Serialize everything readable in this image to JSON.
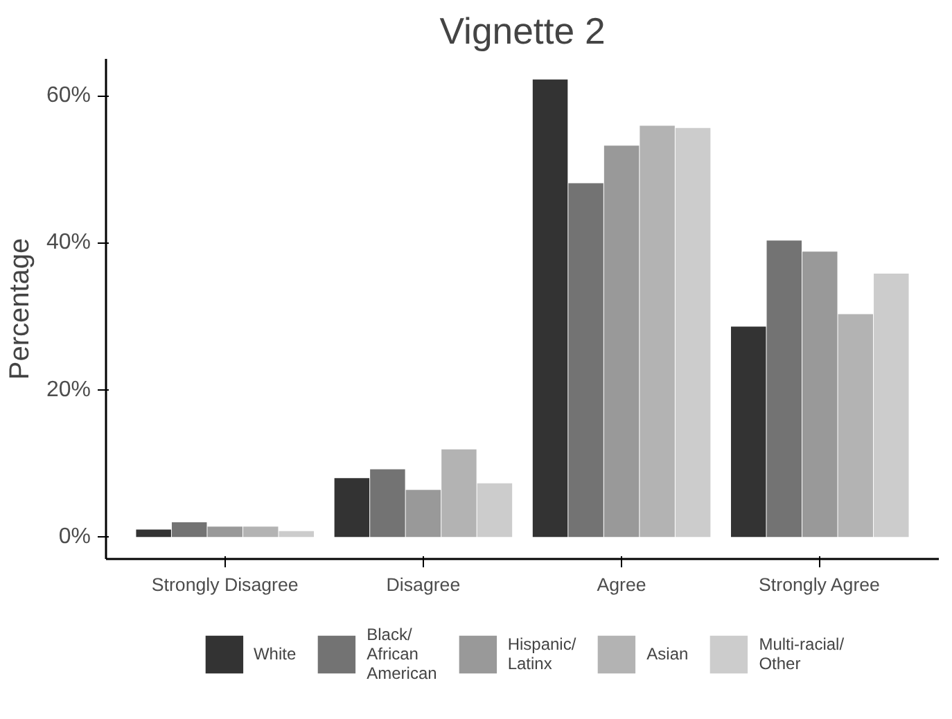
{
  "chart_data": {
    "type": "bar",
    "title": "Vignette 2",
    "ylabel": "Percentage",
    "categories": [
      "Strongly Disagree",
      "Disagree",
      "Agree",
      "Strongly Agree"
    ],
    "series": [
      {
        "name": "White",
        "color": "#333333",
        "values": [
          1.0,
          8.0,
          62.2,
          28.6
        ]
      },
      {
        "name": "Black/African American",
        "color": "#737373",
        "values": [
          2.0,
          9.2,
          48.1,
          40.3
        ]
      },
      {
        "name": "Hispanic/Latinx",
        "color": "#999999",
        "values": [
          1.4,
          6.4,
          53.2,
          38.8
        ]
      },
      {
        "name": "Asian",
        "color": "#b3b3b3",
        "values": [
          1.4,
          11.9,
          55.9,
          30.3
        ]
      },
      {
        "name": "Multi-racial/Other",
        "color": "#cccccc",
        "values": [
          0.8,
          7.3,
          55.6,
          35.8
        ]
      }
    ],
    "ylim": [
      -3,
      65
    ],
    "yticks": [
      {
        "value": 0,
        "label": "0%"
      },
      {
        "value": 20,
        "label": "20%"
      },
      {
        "value": 40,
        "label": "40%"
      },
      {
        "value": 60,
        "label": "60%"
      }
    ],
    "grid": false,
    "legend": "bottom"
  }
}
